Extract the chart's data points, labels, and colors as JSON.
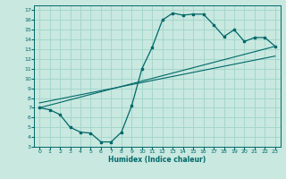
{
  "xlabel": "Humidex (Indice chaleur)",
  "bg_color": "#c8e8e0",
  "grid_color": "#a0d4c8",
  "line_color": "#006868",
  "xlim": [
    -0.5,
    23.5
  ],
  "ylim": [
    3,
    17.5
  ],
  "xticks": [
    0,
    1,
    2,
    3,
    4,
    5,
    6,
    7,
    8,
    9,
    10,
    11,
    12,
    13,
    14,
    15,
    16,
    17,
    18,
    19,
    20,
    21,
    22,
    23
  ],
  "yticks": [
    3,
    4,
    5,
    6,
    7,
    8,
    9,
    10,
    11,
    12,
    13,
    14,
    15,
    16,
    17
  ],
  "curve_x": [
    0,
    1,
    2,
    3,
    4,
    5,
    6,
    7,
    8,
    9,
    10,
    11,
    12,
    13,
    14,
    15,
    16,
    17,
    18,
    19,
    20,
    21,
    22,
    23
  ],
  "curve_y": [
    7.0,
    6.8,
    6.3,
    5.0,
    4.5,
    4.4,
    3.5,
    3.5,
    4.5,
    7.2,
    11.0,
    13.2,
    16.0,
    16.7,
    16.5,
    16.6,
    16.6,
    15.5,
    14.3,
    15.0,
    13.8,
    14.2,
    14.2,
    13.3
  ],
  "line1_x": [
    0,
    23
  ],
  "line1_y": [
    7.0,
    13.3
  ],
  "line2_x": [
    0,
    23
  ],
  "line2_y": [
    7.5,
    12.3
  ]
}
